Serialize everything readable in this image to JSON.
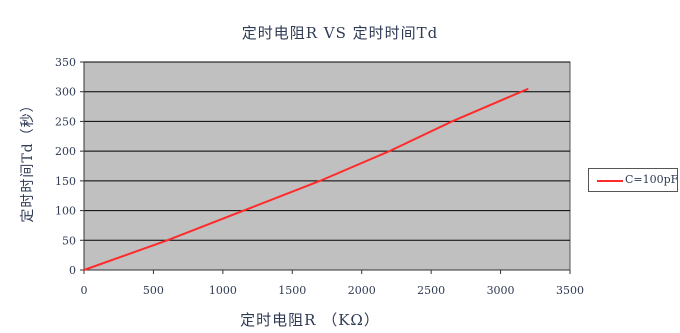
{
  "chart_data": {
    "type": "line",
    "title": "定时电阻R  VS  定时时间Td",
    "xlabel": "定时电阻R  （KΩ）",
    "ylabel": "定时时间Td（秒）",
    "xlim": [
      0,
      3500
    ],
    "ylim": [
      0,
      350
    ],
    "xticks": [
      "0",
      "500",
      "1000",
      "1500",
      "2000",
      "2500",
      "3000",
      "3500"
    ],
    "yticks": [
      "0",
      "50",
      "100",
      "150",
      "200",
      "250",
      "300",
      "350"
    ],
    "grid": true,
    "legend_position": "right",
    "series": [
      {
        "name": "C=100pF",
        "color": "#ff2a2a",
        "x": [
          0,
          600,
          1150,
          1700,
          2200,
          2650,
          3200
        ],
        "y": [
          0,
          50,
          100,
          150,
          200,
          250,
          305
        ]
      }
    ]
  },
  "colors": {
    "plot_background": "#c0c0c0",
    "gridline": "#000000",
    "line": "#ff2a2a"
  }
}
